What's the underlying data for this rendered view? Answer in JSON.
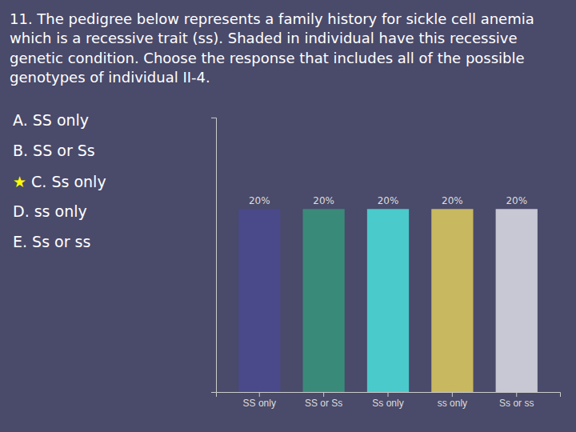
{
  "chart_data": {
    "type": "bar",
    "title": "11.  The pedigree below represents a family history for sickle cell anemia which is a recessive trait (ss).  Shaded in individual have this recessive genetic condition. Choose the response that includes all of the possible genotypes of individual II-4.",
    "annotations": [
      "A. SS only",
      "B. SS or Ss",
      "★ C. Ss only",
      "D. ss only",
      "E. Ss or ss"
    ],
    "categories": [
      "SS only",
      "SS or Ss",
      "Ss only",
      "ss only",
      "Ss or ss"
    ],
    "values": [
      20,
      20,
      20,
      20,
      20
    ],
    "value_labels": [
      "20%",
      "20%",
      "20%",
      "20%",
      "20%"
    ],
    "colors": [
      "#4a4a8a",
      "#3a8a7a",
      "#4acaca",
      "#c8b860",
      "#c8c8d4"
    ],
    "ylim": [
      0,
      30
    ],
    "data_labels": true,
    "tick_labels": "x"
  }
}
